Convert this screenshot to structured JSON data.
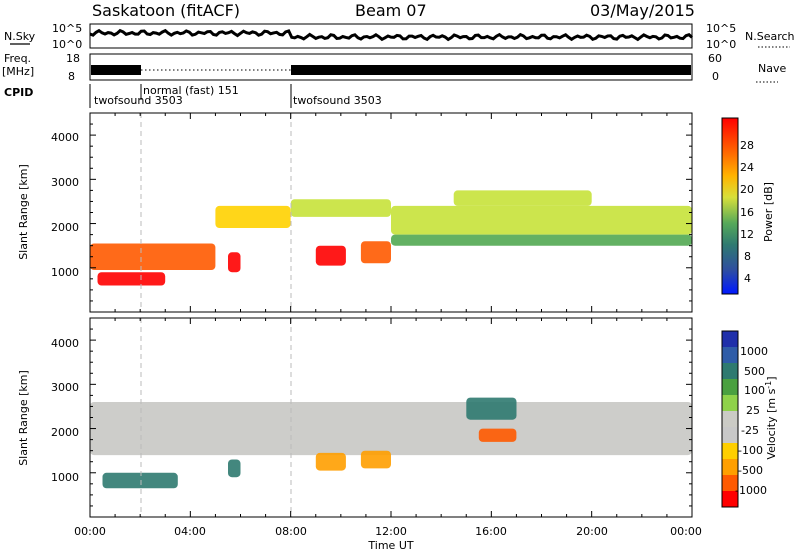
{
  "header": {
    "radar": "Saskatoon (fitACF)",
    "beam": "Beam 07",
    "date": "03/May/2015"
  },
  "strip_labels": {
    "nsky": "N.Sky",
    "nsky_ticks": [
      "10^5",
      "10^0"
    ],
    "nsearch": "N.Search",
    "nsearch_ticks": [
      "10^5",
      "10^0"
    ],
    "freq_top": "Freq.",
    "freq_unit": "[MHz]",
    "freq_ticks": [
      "18",
      "8"
    ],
    "nave": "Nave",
    "nave_ticks": [
      "60",
      "0"
    ],
    "cpid": "CPID"
  },
  "cpid_segments": [
    {
      "label": "twofsound 3503",
      "start_hour": 0.0
    },
    {
      "label": "normal (fast) 151",
      "start_hour": 2.0
    },
    {
      "label": "twofsound 3503",
      "start_hour": 8.0
    }
  ],
  "x_axis": {
    "label": "Time UT",
    "ticks": [
      "00:00",
      "04:00",
      "08:00",
      "12:00",
      "16:00",
      "20:00",
      "00:00"
    ]
  },
  "power_panel": {
    "ylabel": "Slant Range [km]",
    "yticks": [
      "4000",
      "3000",
      "2000",
      "1000"
    ],
    "colorbar_label": "Power [dB]",
    "colorbar_ticks": [
      "28",
      "24",
      "20",
      "16",
      "12",
      "8",
      "4"
    ]
  },
  "velocity_panel": {
    "ylabel": "Slant Range [km]",
    "yticks": [
      "4000",
      "3000",
      "2000",
      "1000"
    ],
    "colorbar_label": "Velocity [m s",
    "colorbar_label_sup": "-1",
    "colorbar_label_end": "]",
    "colorbar_ticks": [
      "1000",
      "500",
      "100",
      "25",
      "-25",
      "-100",
      "-500",
      "-1000"
    ]
  },
  "colors": {
    "power_scale": [
      "#ff0000",
      "#ff5a00",
      "#ff9f00",
      "#ffd100",
      "#c6e23a",
      "#52a852",
      "#2f7a70",
      "#2f4f9f",
      "#1d3fd7",
      "#0a1cff"
    ],
    "velocity_scale": [
      "#1f2faa",
      "#2f5ca8",
      "#2f7a70",
      "#4aa040",
      "#8fd24a",
      "#cbcbc5",
      "#c8c8c8",
      "#ffcf00",
      "#ff9f00",
      "#ff5a00",
      "#ff0000"
    ]
  },
  "chart_data": {
    "type": "heatmap",
    "x_range_hours": [
      0,
      24
    ],
    "y_range_km": [
      0,
      4500
    ],
    "panels": [
      {
        "quantity": "Power [dB]",
        "color_range": [
          0,
          30
        ],
        "regions": [
          {
            "t": [
              0.0,
              5.0
            ],
            "r": [
              950,
              1550
            ],
            "value": 24
          },
          {
            "t": [
              0.3,
              3.0
            ],
            "r": [
              600,
              900
            ],
            "value": 28
          },
          {
            "t": [
              5.0,
              8.0
            ],
            "r": [
              1900,
              2400
            ],
            "value": 20
          },
          {
            "t": [
              8.0,
              12.0
            ],
            "r": [
              2150,
              2550
            ],
            "value": 18
          },
          {
            "t": [
              9.0,
              10.2
            ],
            "r": [
              1050,
              1500
            ],
            "value": 28
          },
          {
            "t": [
              10.8,
              12.0
            ],
            "r": [
              1100,
              1600
            ],
            "value": 26
          },
          {
            "t": [
              5.5,
              6.0
            ],
            "r": [
              900,
              1350
            ],
            "value": 27
          },
          {
            "t": [
              12.0,
              24.0
            ],
            "r": [
              1750,
              2400
            ],
            "value": 18
          },
          {
            "t": [
              14.5,
              20.0
            ],
            "r": [
              2400,
              2750
            ],
            "value": 18
          },
          {
            "t": [
              12.0,
              24.0
            ],
            "r": [
              1500,
              1750
            ],
            "value": 14
          }
        ]
      },
      {
        "quantity": "Velocity [m s-1]",
        "color_range": [
          -1000,
          1000
        ],
        "regions": [
          {
            "t": [
              0.5,
              3.5
            ],
            "r": [
              650,
              1000
            ],
            "value": 150
          },
          {
            "t": [
              0.0,
              24.0
            ],
            "r": [
              1400,
              2600
            ],
            "value": 0
          },
          {
            "t": [
              9.0,
              10.2
            ],
            "r": [
              1050,
              1450
            ],
            "value": -200
          },
          {
            "t": [
              10.8,
              12.0
            ],
            "r": [
              1100,
              1500
            ],
            "value": -250
          },
          {
            "t": [
              15.5,
              17.0
            ],
            "r": [
              1700,
              2000
            ],
            "value": -450
          },
          {
            "t": [
              15.0,
              17.0
            ],
            "r": [
              2200,
              2700
            ],
            "value": 250
          },
          {
            "t": [
              5.5,
              6.0
            ],
            "r": [
              900,
              1300
            ],
            "value": 200
          }
        ]
      }
    ],
    "cpid_change_hours": [
      2.0,
      8.0
    ]
  }
}
